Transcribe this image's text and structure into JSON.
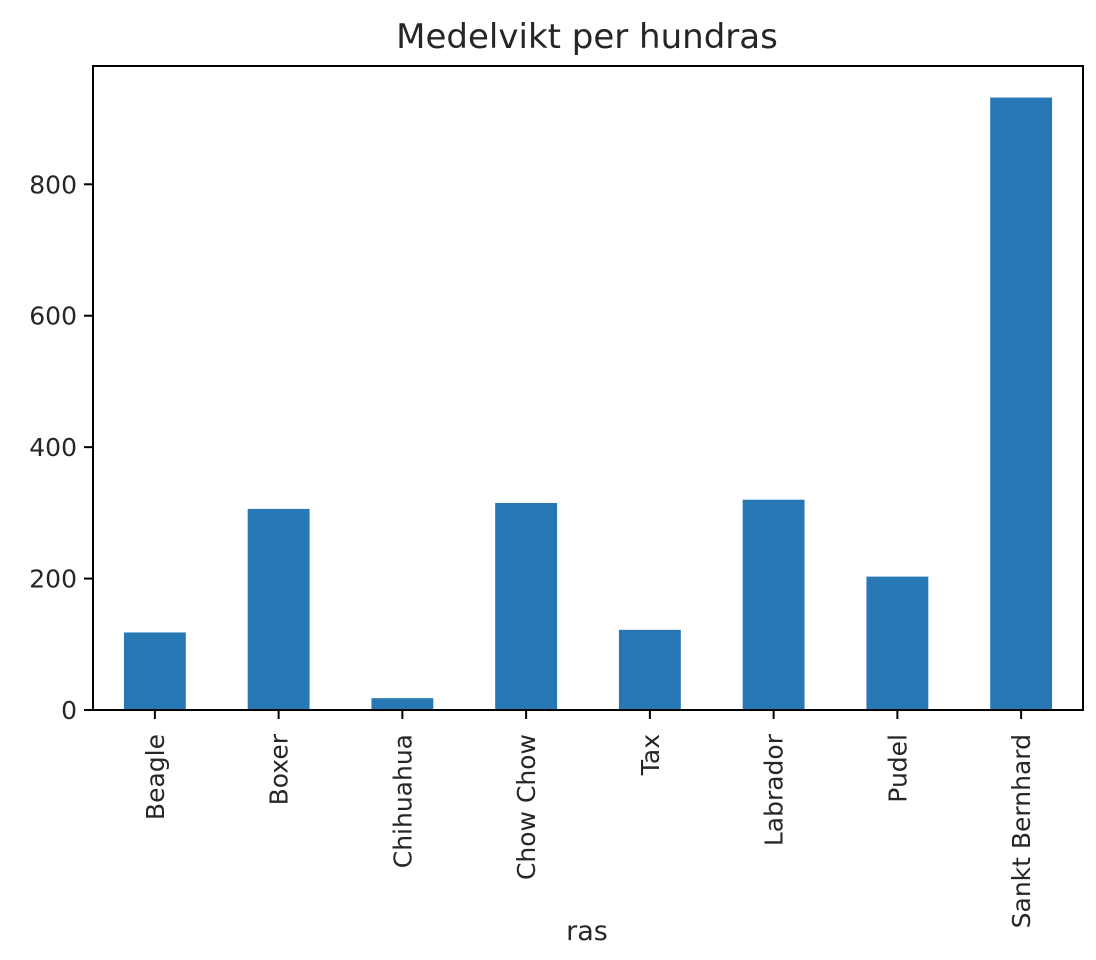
{
  "chart_data": {
    "type": "bar",
    "title": "Medelvikt per hundras",
    "xlabel": "ras",
    "ylabel": "",
    "categories": [
      "Beagle",
      "Boxer",
      "Chihuahua",
      "Chow Chow",
      "Tax",
      "Labrador",
      "Pudel",
      "Sankt Bernhard"
    ],
    "values": [
      118,
      306,
      18,
      315,
      122,
      320,
      203,
      932
    ],
    "ylim": [
      0,
      980
    ],
    "yticks": [
      0,
      200,
      400,
      600,
      800
    ],
    "grid": false,
    "legend": "none",
    "bar_color": "#2878b5"
  }
}
